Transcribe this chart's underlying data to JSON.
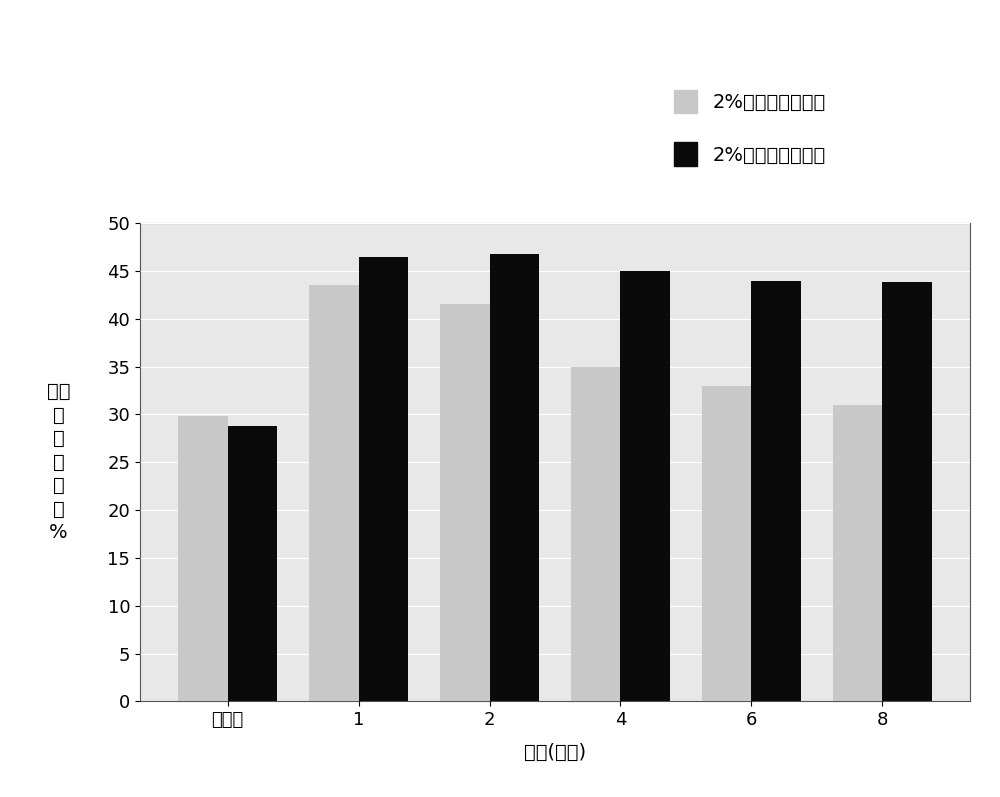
{
  "categories": [
    "涂抑前",
    "1",
    "2",
    "4",
    "6",
    "8"
  ],
  "series1_label": "2%含水玻尿酸样品",
  "series2_label": "2%无水玻尿酸样品",
  "series1_values": [
    29.8,
    43.5,
    41.5,
    35.0,
    33.0,
    31.0
  ],
  "series2_values": [
    28.8,
    46.5,
    46.8,
    45.0,
    44.0,
    43.8
  ],
  "series1_color": "#c8c8c8",
  "series2_color": "#0a0a0a",
  "ylabel_chars": [
    "皮肤",
    "含",
    "水",
    "量",
    "读",
    "値",
    "%"
  ],
  "xlabel": "时间(小时)",
  "ylim": [
    0,
    50
  ],
  "yticks": [
    0,
    5,
    10,
    15,
    20,
    25,
    30,
    35,
    40,
    45,
    50
  ],
  "bar_width": 0.38,
  "background_color": "#ffffff",
  "plot_bg_color": "#e8e8e8",
  "grid_color": "#ffffff",
  "legend_fontsize": 14,
  "axis_fontsize": 14,
  "tick_fontsize": 13
}
